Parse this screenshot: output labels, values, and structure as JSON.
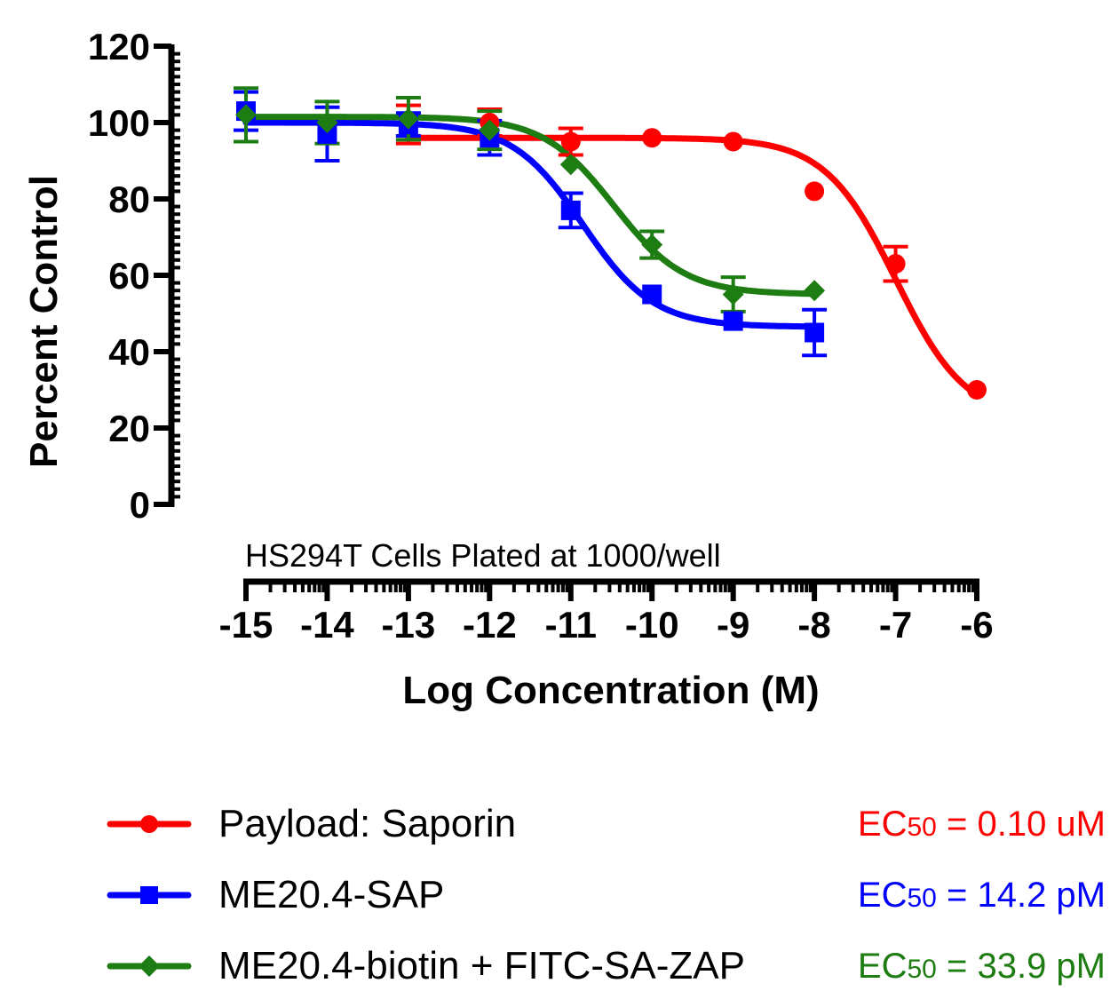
{
  "chart_data": {
    "type": "scatter",
    "xlabel": "Log Concentration (M)",
    "ylabel": "Percent Control",
    "annotation": "HS294T Cells Plated at 1000/well",
    "xlim": [
      -15,
      -6
    ],
    "ylim": [
      0,
      120
    ],
    "x_ticks": [
      -15,
      -14,
      -13,
      -12,
      -11,
      -10,
      -9,
      -8,
      -7,
      -6
    ],
    "x_tick_labels": [
      "-15",
      "-14",
      "-13",
      "-12",
      "-11",
      "-10",
      "-9",
      "-8",
      "-7",
      "-6"
    ],
    "y_ticks": [
      0,
      20,
      40,
      60,
      80,
      100,
      120
    ],
    "y_tick_labels": [
      "0",
      "20",
      "40",
      "60",
      "80",
      "100",
      "120"
    ],
    "series": [
      {
        "name": "Payload: Saporin",
        "color": "#ff0000",
        "marker": "circle",
        "x": [
          -13,
          -12,
          -11,
          -10,
          -9,
          -8,
          -7,
          -6
        ],
        "y": [
          99.5,
          100,
          95,
          96,
          95,
          82,
          63,
          30
        ],
        "err": [
          5,
          3.5,
          3.5,
          0,
          0,
          0,
          4.5,
          0
        ],
        "fit": {
          "top": 96,
          "bottom": 22,
          "log_ec50": -7.0,
          "hill": 1.0
        },
        "ec50_prefix": "EC",
        "ec50_sub": "50",
        "ec50_value": " = 0.10 uM"
      },
      {
        "name": "ME20.4-SAP",
        "color": "#0000ff",
        "marker": "square",
        "x": [
          -15,
          -14,
          -13,
          -12,
          -11,
          -10,
          -9,
          -8
        ],
        "y": [
          103,
          97,
          99.5,
          96,
          77,
          55,
          48,
          45
        ],
        "err": [
          5,
          7,
          3,
          4.5,
          4.5,
          0,
          0,
          6
        ],
        "fit": {
          "top": 100,
          "bottom": 46.5,
          "log_ec50": -10.85,
          "hill": 1.0
        },
        "ec50_prefix": "EC",
        "ec50_sub": "50",
        "ec50_value": " = 14.2 pM"
      },
      {
        "name": "ME20.4-biotin + FITC-SA-ZAP",
        "color": "#1e7d12",
        "marker": "diamond",
        "x": [
          -15,
          -14,
          -13,
          -12,
          -11,
          -10,
          -9,
          -8
        ],
        "y": [
          102,
          100,
          101,
          98,
          89,
          68,
          55,
          56
        ],
        "err": [
          7,
          5.5,
          5.5,
          5,
          0,
          3.5,
          4.5,
          0
        ],
        "fit": {
          "top": 101.5,
          "bottom": 55,
          "log_ec50": -10.47,
          "hill": 1.0
        },
        "ec50_prefix": "EC",
        "ec50_sub": "50",
        "ec50_value": " = 33.9 pM"
      }
    ]
  }
}
